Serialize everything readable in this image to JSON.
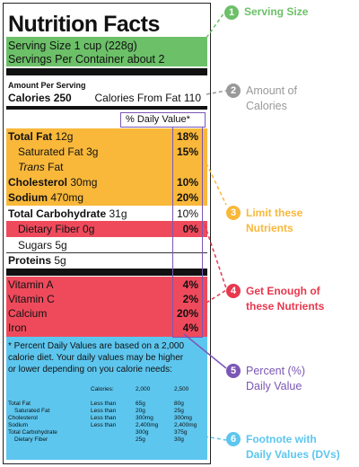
{
  "label": {
    "title": "Nutrition Facts",
    "serving_size": "Serving Size 1 cup (228g)",
    "servings_per_container": "Servings Per Container about 2",
    "amount_per_serving": "Amount Per Serving",
    "calories": "Calories 250",
    "calories_from_fat": "Calories From Fat 110",
    "daily_value_header": "% Daily Value*",
    "nutrients": [
      {
        "name": "Total Fat",
        "amount": "12g",
        "pct": "18%"
      },
      {
        "name": "Saturated Fat",
        "amount": "3g",
        "pct": "15%"
      },
      {
        "name": "Trans",
        "amount": "Fat",
        "pct": ""
      },
      {
        "name": "Cholesterol",
        "amount": "30mg",
        "pct": "10%"
      },
      {
        "name": "Sodium",
        "amount": "470mg",
        "pct": "20%"
      },
      {
        "name": "Total Carbohydrate",
        "amount": "31g",
        "pct": "10%"
      },
      {
        "name": "Dietary Fiber",
        "amount": "0g",
        "pct": "0%"
      },
      {
        "name": "Sugars",
        "amount": "5g",
        "pct": ""
      },
      {
        "name": "Proteins",
        "amount": "5g",
        "pct": ""
      }
    ],
    "vitamins": [
      {
        "name": "Vitamin A",
        "pct": "4%"
      },
      {
        "name": "Vitamin C",
        "pct": "2%"
      },
      {
        "name": "Calcium",
        "pct": "20%"
      },
      {
        "name": "Iron",
        "pct": "4%"
      }
    ],
    "footnote": [
      "* Percent Daily Values are based on a 2,000",
      "calorie diet. Your daily values may be higher",
      "or lower depending on you calorie needs:"
    ],
    "footnote_table": {
      "header": [
        "Calories:",
        "2,000",
        "2,500"
      ],
      "rows": [
        [
          "Total Fat",
          "Less than",
          "65g",
          "80g"
        ],
        [
          "Saturated Fat",
          "Less than",
          "20g",
          "25g"
        ],
        [
          "Cholesterol",
          "Less than",
          "300mg",
          "300mg"
        ],
        [
          "Sodium",
          "Less than",
          "2,400mg",
          "2,400mg"
        ],
        [
          "Total Carbohydrate",
          "",
          "300g",
          "375g"
        ],
        [
          "Dietary Fiber",
          "",
          "25g",
          "30g"
        ]
      ]
    }
  },
  "callouts": [
    {
      "num": "1",
      "line1": "Serving Size",
      "line2": "",
      "color": "#6cc068",
      "text_color": "#6cc068"
    },
    {
      "num": "2",
      "line1": "Amount of",
      "line2": "Calories",
      "color": "#999999",
      "text_color": "#999999"
    },
    {
      "num": "3",
      "line1": "Limit these",
      "line2": "Nutrients",
      "color": "#f9b83a",
      "text_color": "#f9b83a"
    },
    {
      "num": "4",
      "line1": "Get Enough of",
      "line2": "these Nutrients",
      "color": "#e8384e",
      "text_color": "#e8384e"
    },
    {
      "num": "5",
      "line1": "Percent (%)",
      "line2": "Daily Value",
      "color": "#7b56b5",
      "text_color": "#7b56b5"
    },
    {
      "num": "6",
      "line1": "Footnote with",
      "line2": "Daily Values (DVs)",
      "color": "#5dc6ee",
      "text_color": "#5dc6ee"
    }
  ]
}
